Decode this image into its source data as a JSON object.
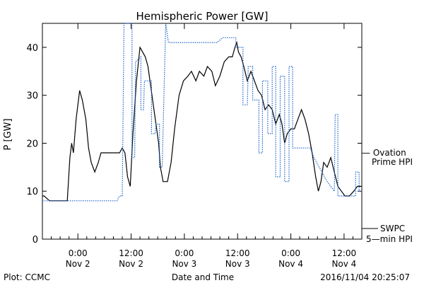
{
  "chart_data": {
    "type": "line",
    "title": "Hemispheric Power [GW]",
    "ylabel": "P [GW]",
    "xlabel": "Date and Time",
    "ylim": [
      0,
      45
    ],
    "xlim": [
      -4,
      32
    ],
    "yticks": [
      0,
      10,
      20,
      30,
      40
    ],
    "xticks": [
      {
        "x": 0,
        "line1": "0:00",
        "line2": "Nov 2"
      },
      {
        "x": 6,
        "line1": "12:00",
        "line2": "Nov 2"
      },
      {
        "x": 12,
        "line1": "0:00",
        "line2": "Nov 3"
      },
      {
        "x": 18,
        "line1": "12:00",
        "line2": "Nov 3"
      },
      {
        "x": 24,
        "line1": "0:00",
        "line2": "Nov 4"
      },
      {
        "x": 30,
        "line1": "12:00",
        "line2": "Nov 4"
      }
    ],
    "x_units_note": "",
    "series": [
      {
        "name": "SWPC 5-min HPI",
        "style": "solid",
        "color": "#000000",
        "points": [
          [
            -4,
            9
          ],
          [
            -3.8,
            9
          ],
          [
            -3.2,
            8
          ],
          [
            -1.2,
            8
          ],
          [
            -0.9,
            17
          ],
          [
            -0.7,
            20
          ],
          [
            -0.5,
            18
          ],
          [
            -0.2,
            25
          ],
          [
            0.2,
            31
          ],
          [
            0.5,
            29
          ],
          [
            0.9,
            25
          ],
          [
            1.2,
            19
          ],
          [
            1.5,
            16
          ],
          [
            1.9,
            14
          ],
          [
            2.3,
            16
          ],
          [
            2.6,
            18
          ],
          [
            3.0,
            18
          ],
          [
            3.8,
            18
          ],
          [
            4.7,
            18
          ],
          [
            5.0,
            19
          ],
          [
            5.3,
            18
          ],
          [
            5.6,
            13
          ],
          [
            5.9,
            11
          ],
          [
            6.2,
            22
          ],
          [
            6.6,
            33
          ],
          [
            7.0,
            40
          ],
          [
            7.3,
            39
          ],
          [
            7.6,
            38
          ],
          [
            7.9,
            36
          ],
          [
            8.2,
            32
          ],
          [
            8.5,
            28
          ],
          [
            8.8,
            24
          ],
          [
            9.1,
            20
          ],
          [
            9.3,
            15
          ],
          [
            9.6,
            12
          ],
          [
            10.1,
            12
          ],
          [
            10.5,
            16
          ],
          [
            10.9,
            23
          ],
          [
            11.4,
            30
          ],
          [
            11.9,
            33
          ],
          [
            12.4,
            34
          ],
          [
            12.8,
            35
          ],
          [
            13.3,
            33
          ],
          [
            13.7,
            35
          ],
          [
            14.2,
            34
          ],
          [
            14.6,
            36
          ],
          [
            15.1,
            35
          ],
          [
            15.5,
            32
          ],
          [
            16.0,
            34
          ],
          [
            16.5,
            37
          ],
          [
            17.0,
            38
          ],
          [
            17.4,
            38
          ],
          [
            17.7,
            40
          ],
          [
            17.9,
            41
          ],
          [
            18.1,
            39
          ],
          [
            18.4,
            38
          ],
          [
            18.7,
            36
          ],
          [
            19.1,
            33
          ],
          [
            19.5,
            35
          ],
          [
            19.9,
            33
          ],
          [
            20.3,
            31
          ],
          [
            20.7,
            30
          ],
          [
            21.1,
            27
          ],
          [
            21.5,
            28
          ],
          [
            21.9,
            27
          ],
          [
            22.3,
            24
          ],
          [
            22.7,
            26
          ],
          [
            23.0,
            24
          ],
          [
            23.3,
            20
          ],
          [
            23.6,
            22
          ],
          [
            24.0,
            23
          ],
          [
            24.4,
            23
          ],
          [
            24.8,
            25
          ],
          [
            25.2,
            27
          ],
          [
            25.6,
            25
          ],
          [
            26.0,
            22
          ],
          [
            26.4,
            18
          ],
          [
            26.8,
            13
          ],
          [
            27.1,
            10
          ],
          [
            27.4,
            12
          ],
          [
            27.7,
            16
          ],
          [
            28.1,
            15
          ],
          [
            28.5,
            17
          ],
          [
            28.9,
            14
          ],
          [
            29.3,
            11
          ],
          [
            29.7,
            10
          ],
          [
            30.1,
            9
          ],
          [
            30.6,
            9
          ],
          [
            31.1,
            10
          ],
          [
            31.5,
            11
          ],
          [
            32,
            11
          ]
        ]
      },
      {
        "name": "Ovation Prime HPI",
        "style": "dotted",
        "color": "#1f63c6",
        "points": [
          [
            -4,
            8
          ],
          [
            -3.6,
            8
          ],
          [
            4.4,
            8
          ],
          [
            4.7,
            9
          ],
          [
            5.0,
            9
          ],
          [
            5.2,
            45
          ],
          [
            6.1,
            45
          ],
          [
            6.1,
            17
          ],
          [
            6.4,
            17
          ],
          [
            6.5,
            37
          ],
          [
            7.1,
            38
          ],
          [
            7.1,
            27
          ],
          [
            7.4,
            27
          ],
          [
            7.5,
            33
          ],
          [
            8.3,
            33
          ],
          [
            8.3,
            22
          ],
          [
            8.7,
            22
          ],
          [
            8.8,
            24
          ],
          [
            9.2,
            24
          ],
          [
            9.2,
            15
          ],
          [
            9.5,
            15
          ],
          [
            9.9,
            45
          ],
          [
            10.2,
            41
          ],
          [
            15.7,
            41
          ],
          [
            16.3,
            42
          ],
          [
            17.8,
            42
          ],
          [
            17.8,
            40
          ],
          [
            18.6,
            40
          ],
          [
            18.6,
            28
          ],
          [
            19.1,
            28
          ],
          [
            19.2,
            36
          ],
          [
            19.7,
            36
          ],
          [
            19.7,
            29
          ],
          [
            20.4,
            29
          ],
          [
            20.4,
            18
          ],
          [
            20.8,
            18
          ],
          [
            20.8,
            33
          ],
          [
            21.4,
            33
          ],
          [
            21.4,
            22
          ],
          [
            21.9,
            22
          ],
          [
            21.9,
            36
          ],
          [
            22.3,
            36
          ],
          [
            22.3,
            13
          ],
          [
            22.8,
            13
          ],
          [
            22.8,
            34
          ],
          [
            23.3,
            34
          ],
          [
            23.3,
            12
          ],
          [
            23.8,
            12
          ],
          [
            23.8,
            36
          ],
          [
            24.2,
            36
          ],
          [
            24.2,
            19
          ],
          [
            25.0,
            19
          ],
          [
            26.2,
            19
          ],
          [
            26.6,
            17
          ],
          [
            27.2,
            15
          ],
          [
            28.1,
            12
          ],
          [
            28.9,
            10
          ],
          [
            29.0,
            26
          ],
          [
            29.3,
            26
          ],
          [
            29.3,
            9
          ],
          [
            31.3,
            9
          ],
          [
            31.3,
            14
          ],
          [
            31.7,
            14
          ],
          [
            31.7,
            10
          ],
          [
            32,
            10
          ]
        ]
      }
    ]
  },
  "legend": {
    "ovation_line1": "— Ovation",
    "ovation_line2": "Prime HPI",
    "swpc_line1": "SWPC",
    "swpc_line2": "5—min HPI"
  },
  "footer": {
    "left": "Plot: CCMC",
    "center": "Date and Time",
    "right": "2016/11/04 20:25:07"
  },
  "colors": {
    "ovation": "#1f63c6",
    "swpc": "#000000"
  }
}
